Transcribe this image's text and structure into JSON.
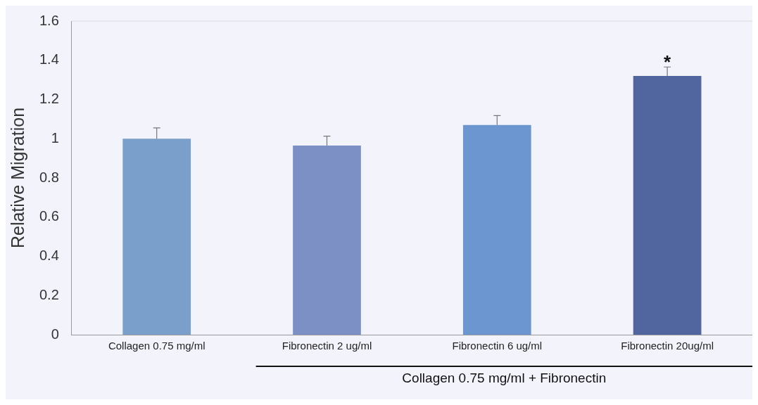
{
  "chart_data": {
    "type": "bar",
    "ylabel": "Relative Migration",
    "categories": [
      "Collagen 0.75 mg/ml",
      "Fibronectin 2 ug/ml",
      "Fibronectin 6 ug/ml",
      "Fibronectin 20ug/ml"
    ],
    "values": [
      1.0,
      0.965,
      1.07,
      1.32
    ],
    "colors": [
      "#7a9fca",
      "#7d90c6",
      "#6b96d0",
      "#51659f"
    ],
    "errors": [
      [
        1.0,
        1.055
      ],
      [
        0.965,
        1.013
      ],
      [
        1.07,
        1.118
      ],
      [
        1.32,
        1.366
      ]
    ],
    "ylim": [
      0,
      1.6
    ],
    "yticks": [
      0,
      0.2,
      0.4,
      0.6,
      0.8,
      1,
      1.2,
      1.4,
      1.6
    ],
    "grid": false,
    "legend": false,
    "annotations": [
      "*",
      "Collagen 0.75 mg/ml + Fibronectin"
    ]
  }
}
